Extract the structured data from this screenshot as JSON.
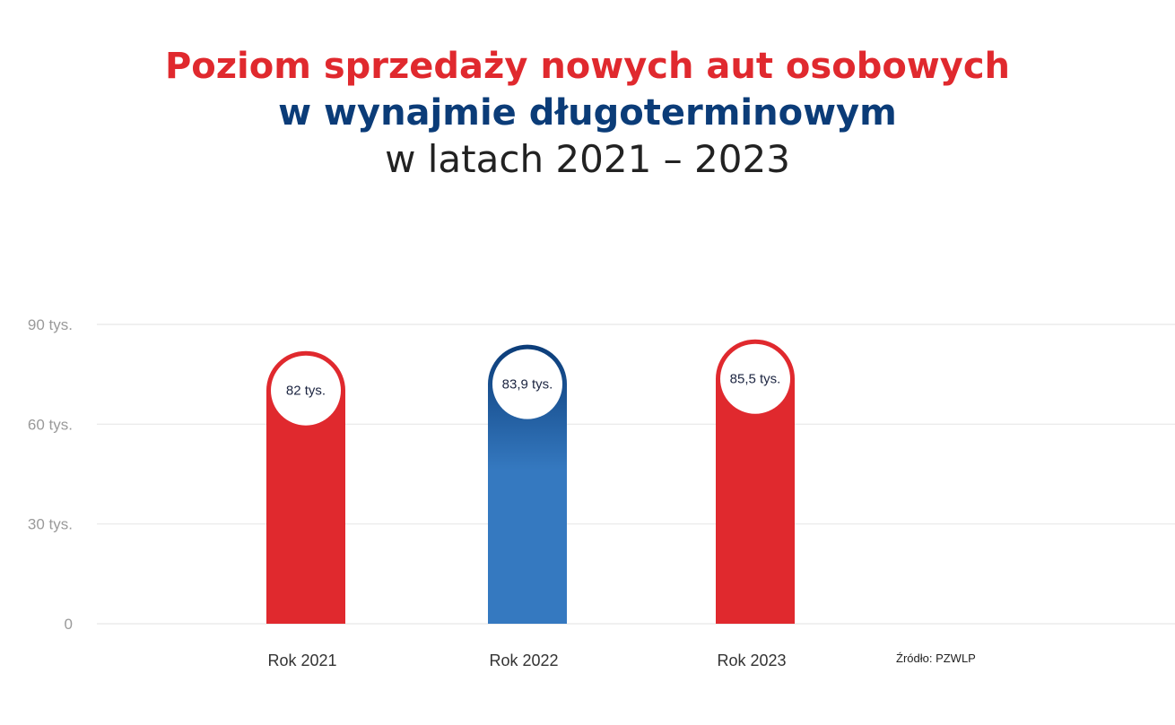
{
  "title": {
    "line1": "Poziom sprzedaży nowych aut osobowych",
    "line2": "w wynajmie długoterminowym",
    "line3": "w latach 2021 – 2023"
  },
  "source": "Źródło: PZWLP",
  "colors": {
    "red": "#e0292e",
    "blue_top": "#0b3c78",
    "blue_bottom": "#3579c0",
    "grid": "#e8e8e8"
  },
  "chart_data": {
    "type": "bar",
    "categories": [
      "Rok 2021",
      "Rok 2022",
      "Rok 2023"
    ],
    "values": [
      82,
      83.9,
      85.5
    ],
    "value_labels": [
      "82 tys.",
      "83,9 tys.",
      "85,5 tys."
    ],
    "bar_colors": [
      "red",
      "blue",
      "red"
    ],
    "yticks": [
      0,
      30,
      60,
      90
    ],
    "ytick_labels": [
      "0",
      "30 tys.",
      "60 tys.",
      "90 tys."
    ],
    "ylim": [
      0,
      90
    ],
    "grid": true,
    "legend": "none"
  }
}
